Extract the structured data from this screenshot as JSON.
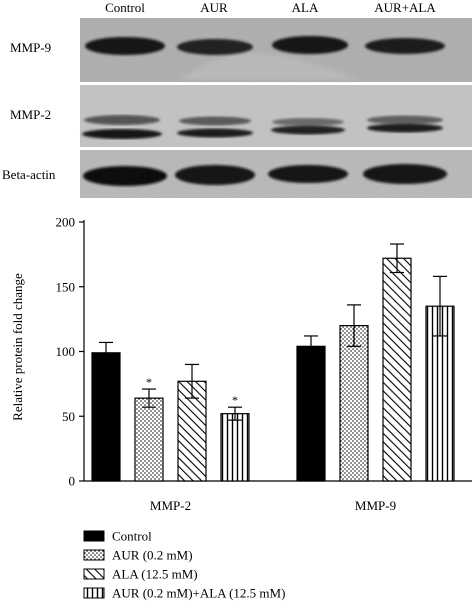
{
  "blot": {
    "lanes": [
      "Control",
      "AUR",
      "ALA",
      "AUR+ALA"
    ],
    "rows": [
      "MMP-9",
      "MMP-2",
      "Beta-actin"
    ]
  },
  "chart_data": {
    "type": "bar",
    "categories": [
      "MMP-2",
      "MMP-9"
    ],
    "ylabel": "Relative protein fold change",
    "ylim": [
      0,
      200
    ],
    "yticks": [
      0,
      50,
      100,
      150,
      200
    ],
    "series": [
      {
        "name": "Control",
        "pattern": "solid",
        "values": [
          99,
          104
        ],
        "errors": [
          8,
          8
        ],
        "sig": [
          "",
          ""
        ]
      },
      {
        "name": "AUR (0.2 mM)",
        "pattern": "dots",
        "values": [
          64,
          120
        ],
        "errors": [
          7,
          16
        ],
        "sig": [
          "*",
          ""
        ]
      },
      {
        "name": "ALA (12.5 mM)",
        "pattern": "diagonal",
        "values": [
          77,
          172
        ],
        "errors": [
          13,
          11
        ],
        "sig": [
          "",
          ""
        ]
      },
      {
        "name": "AUR (0.2 mM)+ALA (12.5 mM)",
        "pattern": "vertical",
        "values": [
          52,
          135
        ],
        "errors": [
          5,
          23
        ],
        "sig": [
          "*",
          ""
        ]
      }
    ]
  }
}
